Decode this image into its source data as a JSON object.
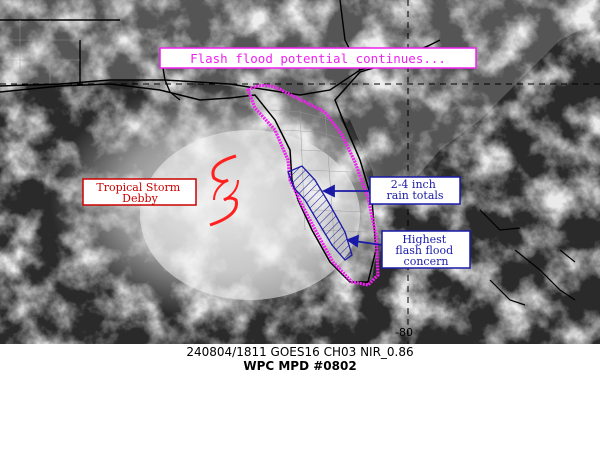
{
  "headline": "Flash flood potential continues...",
  "storm_label": [
    "Tropical Storm",
    "Debby"
  ],
  "rain_label": [
    "2-4 inch",
    "rain totals"
  ],
  "concern_label": [
    "Highest",
    "flash flood",
    "concern"
  ],
  "longitude_label": "-80",
  "caption": {
    "line1": "240804/1811 GOES16 CH03 NIR_0.86",
    "line2": "WPC MPD #0802"
  },
  "colors": {
    "headline": "#ee22ee",
    "outlook_area": "#ee22ee",
    "storm_label": "#cc0000",
    "storm_symbol": "#ff2020",
    "annotation": "#1a1aa8"
  },
  "icons": {
    "storm": "tropical-storm-symbol"
  }
}
